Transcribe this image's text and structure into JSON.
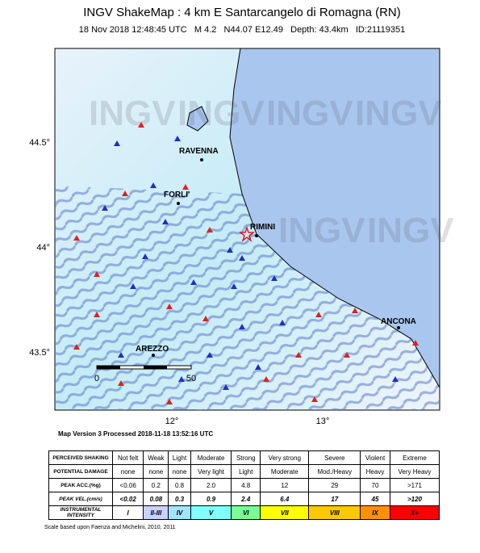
{
  "header": {
    "title": "INGV ShakeMap : 4 km E Santarcangelo di Romagna (RN)",
    "subtitle": "18 Nov 2018 12:48:45 UTC   M 4.2   N44.07 E12.49   Depth: 43.4km   ID:21119351"
  },
  "map": {
    "watermark": "INGV",
    "lat_labels": [
      "44.5°",
      "44°",
      "43.5°"
    ],
    "lon_labels": [
      "12°",
      "13°"
    ],
    "cities": [
      {
        "label": "RAVENNA"
      },
      {
        "label": "FORLI'"
      },
      {
        "label": "RIMINI"
      },
      {
        "label": "ANCONA"
      },
      {
        "label": "AREZZO"
      }
    ],
    "scale_labels": [
      "0",
      "50"
    ],
    "version": "Map Version 3 Processed 2018-11-18 13:52:16 UTC"
  },
  "legend": {
    "rows": [
      {
        "label": "PERCEIVED SHAKING",
        "cells": [
          "Not felt",
          "Weak",
          "Light",
          "Moderate",
          "Strong",
          "Very strong",
          "Severe",
          "Violent",
          "Extreme"
        ]
      },
      {
        "label": "POTENTIAL DAMAGE",
        "cells": [
          "none",
          "none",
          "none",
          "Very light",
          "Light",
          "Moderate",
          "Mod./Heavy",
          "Heavy",
          "Very Heavy"
        ]
      },
      {
        "label": "PEAK ACC.(%g)",
        "cells": [
          "<0.06",
          "0.2",
          "0.8",
          "2.0",
          "4.8",
          "12",
          "29",
          "70",
          ">171"
        ]
      },
      {
        "label": "PEAK VEL.(cm/s)",
        "cells": [
          "<0.02",
          "0.08",
          "0.3",
          "0.9",
          "2.4",
          "6.4",
          "17",
          "45",
          ">120"
        ]
      },
      {
        "label": "INSTRUMENTAL INTENSITY",
        "cells": [
          "I",
          "II-III",
          "IV",
          "V",
          "VI",
          "VII",
          "VIII",
          "IX",
          "X+"
        ]
      }
    ],
    "intensity_colors": [
      "#ffffff",
      "#c8d2ff",
      "#a0e6ff",
      "#80ffff",
      "#7aff93",
      "#ffff00",
      "#ffc800",
      "#ff9100",
      "#ff0000"
    ],
    "footnote": "Scale based upon Faenza and Michelini, 2010, 2011"
  }
}
